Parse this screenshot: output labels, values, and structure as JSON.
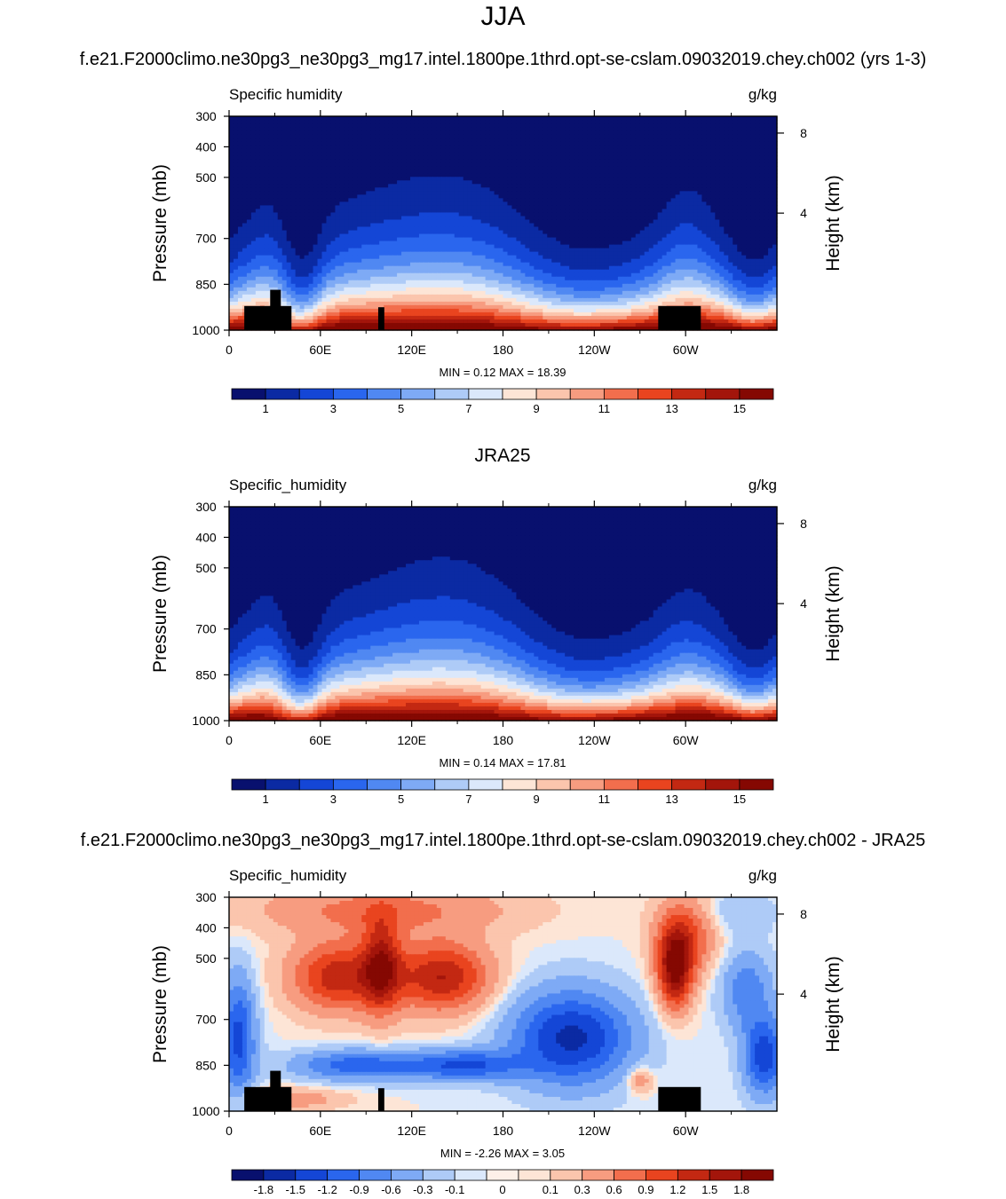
{
  "figure": {
    "title": "JJA",
    "test_case": "f.e21.F2000climo.ne30pg3_ne30pg3_mg17.intel.1800pe.1thrd.opt-se-cslam.09032019.chey.ch002 (yrs 1-3)",
    "diff_case": "f.e21.F2000climo.ne30pg3_ne30pg3_mg17.intel.1800pe.1thrd.opt-se-cslam.09032019.chey.ch002 - JRA25"
  },
  "colors": {
    "abs_scale": [
      "#08106e",
      "#0b2aa3",
      "#1446d6",
      "#2a66ee",
      "#5088f2",
      "#7eaaf5",
      "#aecbf7",
      "#dbe8fb",
      "#fde5d6",
      "#fbc5ad",
      "#f79c80",
      "#f26e4d",
      "#e9441f",
      "#c32812",
      "#a3150b",
      "#850802"
    ],
    "diff_scale": [
      "#08106e",
      "#0b2aa3",
      "#1446d6",
      "#2a66ee",
      "#5088f2",
      "#7eaaf5",
      "#aecbf7",
      "#dbe8fb",
      "#fdf0e8",
      "#fde5d6",
      "#fbc5ad",
      "#f79c80",
      "#f26e4d",
      "#e9441f",
      "#c32812",
      "#a3150b",
      "#850802"
    ],
    "terrain": "#000000"
  },
  "chart_data": [
    {
      "type": "heatmap",
      "title": "",
      "left_label": "Specific humidity",
      "right_label": "g/kg",
      "ylabel": "Pressure (mb)",
      "ylabel_right": "Height (km)",
      "x_ticks": [
        "0",
        "60E",
        "120E",
        "180",
        "120W",
        "60W"
      ],
      "y_ticks": [
        "300",
        "400",
        "500",
        "700",
        "850",
        "1000"
      ],
      "y_ticks_right": [
        "8",
        "4"
      ],
      "stats": "MIN =   0.12  MAX =  18.39",
      "colorbar_labels": [
        "1",
        "3",
        "5",
        "7",
        "9",
        "11",
        "13",
        "15"
      ],
      "min": 0.12,
      "max": 18.39,
      "field": "abs"
    },
    {
      "type": "heatmap",
      "title": "JRA25",
      "left_label": "Specific_humidity",
      "right_label": "g/kg",
      "ylabel": "Pressure (mb)",
      "ylabel_right": "Height (km)",
      "x_ticks": [
        "0",
        "60E",
        "120E",
        "180",
        "120W",
        "60W"
      ],
      "y_ticks": [
        "300",
        "400",
        "500",
        "700",
        "850",
        "1000"
      ],
      "y_ticks_right": [
        "8",
        "4"
      ],
      "stats": "MIN =   0.14  MAX =  17.81",
      "colorbar_labels": [
        "1",
        "3",
        "5",
        "7",
        "9",
        "11",
        "13",
        "15"
      ],
      "min": 0.14,
      "max": 17.81,
      "field": "abs"
    },
    {
      "type": "heatmap",
      "title": "",
      "left_label": "Specific_humidity",
      "right_label": "g/kg",
      "ylabel": "Pressure (mb)",
      "ylabel_right": "Height (km)",
      "x_ticks": [
        "0",
        "60E",
        "120E",
        "180",
        "120W",
        "60W"
      ],
      "y_ticks": [
        "300",
        "400",
        "500",
        "700",
        "850",
        "1000"
      ],
      "y_ticks_right": [
        "8",
        "4"
      ],
      "stats": "MIN =  -2.26  MAX =   3.05",
      "colorbar_labels": [
        "-1.8",
        "-1.5",
        "-1.2",
        "-0.9",
        "-0.6",
        "-0.3",
        "-0.1",
        "0",
        "0.1",
        "0.3",
        "0.6",
        "0.9",
        "1.2",
        "1.5",
        "1.8"
      ],
      "min": -2.26,
      "max": 3.05,
      "field": "diff"
    }
  ]
}
